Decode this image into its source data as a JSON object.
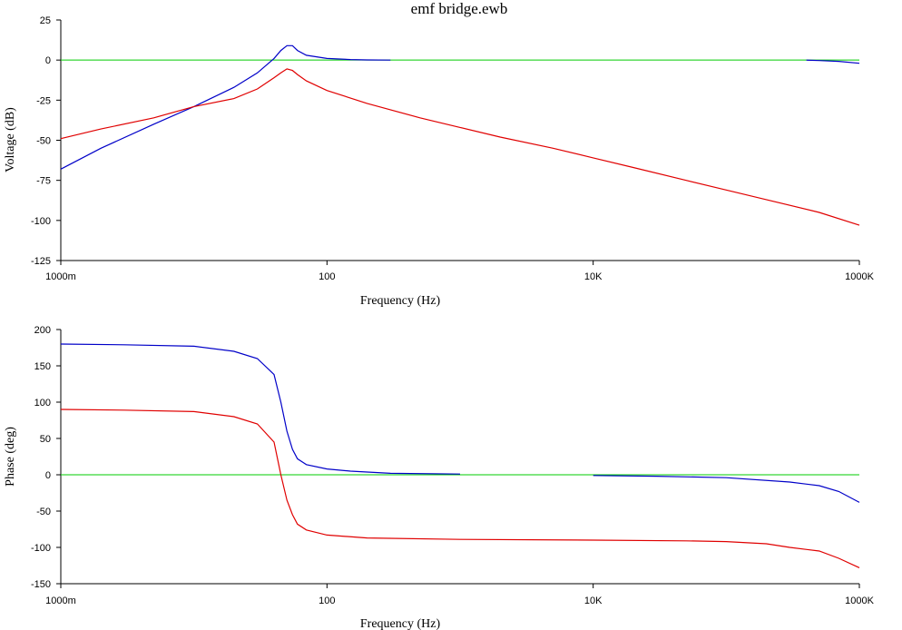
{
  "title": "emf bridge.ewb",
  "colors": {
    "background": "#ffffff",
    "axis": "#000000",
    "series_blue": "#0000c8",
    "series_red": "#e00000",
    "reference_green": "#00cc00"
  },
  "chart_data": [
    {
      "type": "line",
      "title": "emf bridge.ewb",
      "xlabel": "Frequency (Hz)",
      "ylabel": "Voltage (dB)",
      "x_scale": "log",
      "xlim": [
        1,
        1000000
      ],
      "ylim": [
        -125,
        25
      ],
      "grid": false,
      "x_ticks": [
        {
          "value": 1,
          "label": "1000m"
        },
        {
          "value": 100,
          "label": "100"
        },
        {
          "value": 10000,
          "label": "10K"
        },
        {
          "value": 1000000,
          "label": "1000K"
        }
      ],
      "y_ticks": [
        {
          "value": 25,
          "label": "25"
        },
        {
          "value": 0,
          "label": "0"
        },
        {
          "value": -25,
          "label": "-25"
        },
        {
          "value": -50,
          "label": "-50"
        },
        {
          "value": -75,
          "label": "-75"
        },
        {
          "value": -100,
          "label": "-100"
        },
        {
          "value": -125,
          "label": "-125"
        }
      ],
      "reference_lines": [
        {
          "y": 0,
          "color": "#00cc00"
        }
      ],
      "series": [
        {
          "color": "#0000c8",
          "segments": [
            {
              "x": [
                1,
                2,
                5,
                10,
                20,
                30,
                40,
                45,
                50,
                55,
                60,
                70,
                100,
                150,
                200,
                300
              ],
              "y": [
                -68,
                -55,
                -40,
                -29,
                -17,
                -8,
                1,
                6,
                9,
                9,
                6,
                3,
                1,
                0.3,
                0.1,
                0
              ]
            },
            {
              "x": [
                400000,
                500000,
                700000,
                1000000
              ],
              "y": [
                0,
                -0.3,
                -0.8,
                -2
              ]
            }
          ]
        },
        {
          "color": "#e00000",
          "segments": [
            {
              "x": [
                1,
                2,
                5,
                10,
                20,
                30,
                40,
                45,
                50,
                55,
                60,
                70,
                100,
                200,
                500,
                1000,
                2000,
                5000,
                10000,
                20000,
                50000,
                100000,
                200000,
                500000,
                1000000
              ],
              "y": [
                -49,
                -43,
                -36,
                -29,
                -24,
                -18,
                -11,
                -8,
                -5.5,
                -6.5,
                -9,
                -13,
                -19,
                -27,
                -36,
                -42,
                -48,
                -55,
                -61,
                -67,
                -75,
                -81,
                -87,
                -95,
                -103
              ]
            }
          ]
        }
      ]
    },
    {
      "type": "line",
      "xlabel": "Frequency (Hz)",
      "ylabel": "Phase (deg)",
      "x_scale": "log",
      "xlim": [
        1,
        1000000
      ],
      "ylim": [
        -150,
        200
      ],
      "grid": false,
      "x_ticks": [
        {
          "value": 1,
          "label": "1000m"
        },
        {
          "value": 100,
          "label": "100"
        },
        {
          "value": 10000,
          "label": "10K"
        },
        {
          "value": 1000000,
          "label": "1000K"
        }
      ],
      "y_ticks": [
        {
          "value": 200,
          "label": "200"
        },
        {
          "value": 150,
          "label": "150"
        },
        {
          "value": 100,
          "label": "100"
        },
        {
          "value": 50,
          "label": "50"
        },
        {
          "value": 0,
          "label": "0"
        },
        {
          "value": -50,
          "label": "-50"
        },
        {
          "value": -100,
          "label": "-100"
        },
        {
          "value": -150,
          "label": "-150"
        }
      ],
      "reference_lines": [
        {
          "y": 0,
          "color": "#00cc00"
        }
      ],
      "series": [
        {
          "color": "#0000c8",
          "segments": [
            {
              "x": [
                1,
                3,
                10,
                20,
                30,
                40,
                45,
                50,
                55,
                60,
                70,
                100,
                150,
                300,
                1000
              ],
              "y": [
                180,
                179,
                177,
                170,
                160,
                138,
                100,
                60,
                35,
                22,
                14,
                8,
                5,
                2,
                1
              ]
            },
            {
              "x": [
                10000,
                30000,
                100000,
                300000,
                500000,
                700000,
                1000000
              ],
              "y": [
                -1,
                -2,
                -4,
                -10,
                -15,
                -23,
                -38
              ]
            }
          ]
        },
        {
          "color": "#e00000",
          "segments": [
            {
              "x": [
                1,
                3,
                10,
                20,
                30,
                40,
                45,
                50,
                55,
                60,
                70,
                100,
                200,
                1000,
                10000,
                50000,
                100000,
                200000,
                300000,
                500000,
                700000,
                1000000
              ],
              "y": [
                90,
                89,
                87,
                80,
                70,
                45,
                0,
                -35,
                -55,
                -68,
                -76,
                -83,
                -87,
                -89,
                -90,
                -91,
                -92,
                -95,
                -100,
                -105,
                -115,
                -128
              ]
            }
          ]
        }
      ]
    }
  ]
}
